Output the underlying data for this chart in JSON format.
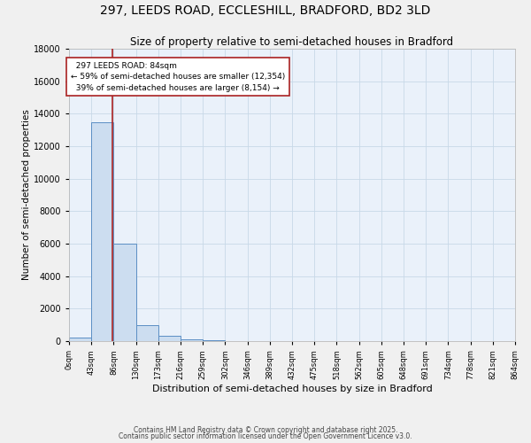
{
  "title": "297, LEEDS ROAD, ECCLESHILL, BRADFORD, BD2 3LD",
  "subtitle": "Size of property relative to semi-detached houses in Bradford",
  "xlabel": "Distribution of semi-detached houses by size in Bradford",
  "ylabel": "Number of semi-detached properties",
  "bin_edges": [
    0,
    43,
    86,
    129,
    172,
    215,
    258,
    301,
    344,
    387,
    430,
    473,
    516,
    559,
    602,
    645,
    688,
    731,
    774,
    817,
    860
  ],
  "bar_heights": [
    200,
    13500,
    6000,
    1000,
    350,
    100,
    50,
    0,
    0,
    0,
    0,
    0,
    0,
    0,
    0,
    0,
    0,
    0,
    0,
    0
  ],
  "bin_labels": [
    "0sqm",
    "43sqm",
    "86sqm",
    "130sqm",
    "173sqm",
    "216sqm",
    "259sqm",
    "302sqm",
    "346sqm",
    "389sqm",
    "432sqm",
    "475sqm",
    "518sqm",
    "562sqm",
    "605sqm",
    "648sqm",
    "691sqm",
    "734sqm",
    "778sqm",
    "821sqm",
    "864sqm"
  ],
  "bar_color": "#ccddf0",
  "bar_edge_color": "#5b8ec4",
  "bar_linewidth": 0.7,
  "grid_color": "#c8d8e8",
  "bg_color": "#eaf1fa",
  "fig_bg_color": "#f0f0f0",
  "property_size": 84,
  "property_label": "297 LEEDS ROAD: 84sqm",
  "pct_smaller": 59,
  "pct_larger": 39,
  "count_smaller": 12354,
  "count_larger": 8154,
  "vline_color": "#aa2222",
  "annotation_box_color": "#ffffff",
  "annotation_box_edge": "#aa2222",
  "ylim": [
    0,
    18000
  ],
  "yticks": [
    0,
    2000,
    4000,
    6000,
    8000,
    10000,
    12000,
    14000,
    16000,
    18000
  ],
  "footnote1": "Contains HM Land Registry data © Crown copyright and database right 2025.",
  "footnote2": "Contains public sector information licensed under the Open Government Licence v3.0."
}
